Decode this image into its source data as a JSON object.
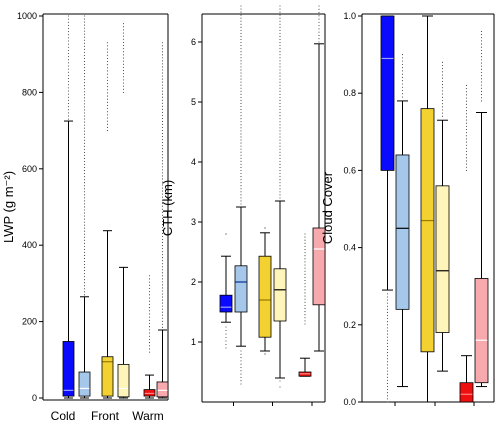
{
  "chart_data": [
    {
      "type": "box",
      "ylabel": "LWP (g m⁻²)",
      "ylim": [
        0,
        1000
      ],
      "yticks": [
        0,
        200,
        400,
        600,
        800,
        1000
      ],
      "group_labels": [
        "Cold",
        "Front",
        "Warm"
      ],
      "boxes": [
        {
          "group": "Cold",
          "color": "#0a0aff",
          "median_color": "#9aa0ff",
          "q1": 5,
          "median": 20,
          "q3": 148,
          "whisker_low": 0,
          "whisker_high": 725,
          "outliers_from": 730,
          "outliers_to": 1000
        },
        {
          "group": "Cold",
          "color": "#a5c8ea",
          "median_color": "#ffffff",
          "q1": 5,
          "median": 25,
          "q3": 68,
          "whisker_low": 0,
          "whisker_high": 265,
          "outliers_from": 270,
          "outliers_to": 1000
        },
        {
          "group": "Front",
          "color": "#f2d130",
          "median_color": "#9a7a00",
          "q1": 5,
          "median": 95,
          "q3": 108,
          "whisker_low": 0,
          "whisker_high": 438,
          "outliers_from": 700,
          "outliers_to": 930
        },
        {
          "group": "Front",
          "color": "#fff5bb",
          "median_color": "#ffffff",
          "q1": 3,
          "median": 25,
          "q3": 88,
          "whisker_low": 0,
          "whisker_high": 342,
          "outliers_from": 800,
          "outliers_to": 980
        },
        {
          "group": "Warm",
          "color": "#ee1010",
          "median_color": "#ff8080",
          "q1": 5,
          "median": 12,
          "q3": 22,
          "whisker_low": 0,
          "whisker_high": 60,
          "outliers_from": 120,
          "outliers_to": 320
        },
        {
          "group": "Warm",
          "color": "#f7a9ad",
          "median_color": "#ffffff",
          "q1": 3,
          "median": 20,
          "q3": 42,
          "whisker_low": 0,
          "whisker_high": 178,
          "outliers_from": 185,
          "outliers_to": 930
        }
      ]
    },
    {
      "type": "box",
      "ylabel": "CTH (km)",
      "ylim": [
        0,
        6.6
      ],
      "yticks": [
        1,
        2,
        3,
        4,
        5,
        6
      ],
      "boxes": [
        {
          "color": "#0a0aff",
          "median_color": "#9aa0ff",
          "q1": 1.5,
          "median": 1.58,
          "q3": 1.78,
          "whisker_low": 1.33,
          "whisker_high": 2.43,
          "outliers_from": 0.9,
          "outliers_to": 1.25,
          "outliers_high_from": 2.8,
          "outliers_high_to": 2.8
        },
        {
          "color": "#a5c8ea",
          "median_color": "#003399",
          "q1": 1.5,
          "median": 2.0,
          "q3": 2.27,
          "whisker_low": 0.93,
          "whisker_high": 3.25,
          "outliers_from": 3.3,
          "outliers_to": 6.6,
          "outliers_low_from": 0.3,
          "outliers_low_to": 0.85
        },
        {
          "color": "#f2d130",
          "median_color": "#9a7a00",
          "q1": 1.08,
          "median": 1.7,
          "q3": 2.43,
          "whisker_low": 0.85,
          "whisker_high": 2.82,
          "outliers_from": 2.9,
          "outliers_to": 2.9,
          "outliers_low_from": 0.8,
          "outliers_low_to": 0.8
        },
        {
          "color": "#fff5bb",
          "median_color": "#000000",
          "q1": 1.35,
          "median": 1.87,
          "q3": 2.22,
          "whisker_low": 0.4,
          "whisker_high": 3.35,
          "outliers_from": 3.4,
          "outliers_to": 6.6,
          "outliers_low_from": 0.25,
          "outliers_low_to": 0.35
        },
        {
          "color": "#ee1010",
          "median_color": "#ff8080",
          "q1": 0.43,
          "median": 0.47,
          "q3": 0.5,
          "whisker_low": 0.43,
          "whisker_high": 0.73,
          "outliers_from": 1.3,
          "outliers_to": 2.8
        },
        {
          "color": "#f7a9ad",
          "median_color": "#ffffff",
          "q1": 1.62,
          "median": 2.55,
          "q3": 2.9,
          "whisker_low": 0.85,
          "whisker_high": 5.97,
          "outliers_from": 6.0,
          "outliers_to": 6.6
        }
      ]
    },
    {
      "type": "box",
      "ylabel": "Cloud Cover",
      "ylim": [
        0,
        1.0
      ],
      "yticks": [
        0.0,
        0.2,
        0.4,
        0.6,
        0.8,
        1.0
      ],
      "boxes": [
        {
          "color": "#0a0aff",
          "median_color": "#9aa0ff",
          "q1": 0.6,
          "median": 0.89,
          "q3": 1.0,
          "whisker_low": 0.29,
          "whisker_high": 1.0,
          "outliers_from": 0.0,
          "outliers_to": 0.28
        },
        {
          "color": "#a5c8ea",
          "median_color": "#000000",
          "q1": 0.24,
          "median": 0.45,
          "q3": 0.64,
          "whisker_low": 0.04,
          "whisker_high": 0.78,
          "outliers_from": 0.79,
          "outliers_to": 0.9
        },
        {
          "color": "#f2d130",
          "median_color": "#9a7a00",
          "q1": 0.13,
          "median": 0.47,
          "q3": 0.76,
          "whisker_low": 0.0,
          "whisker_high": 1.0,
          "outliers_from": 0,
          "outliers_to": 0
        },
        {
          "color": "#fff5bb",
          "median_color": "#000000",
          "q1": 0.18,
          "median": 0.34,
          "q3": 0.56,
          "whisker_low": 0.08,
          "whisker_high": 0.73,
          "outliers_from": 0.74,
          "outliers_to": 0.88
        },
        {
          "color": "#ee1010",
          "median_color": "#ff8080",
          "q1": 0.0,
          "median": 0.02,
          "q3": 0.05,
          "whisker_low": 0.0,
          "whisker_high": 0.12,
          "outliers_from": 0.6,
          "outliers_to": 0.82
        },
        {
          "color": "#f7a9ad",
          "median_color": "#ffffff",
          "q1": 0.05,
          "median": 0.16,
          "q3": 0.32,
          "whisker_low": 0.04,
          "whisker_high": 0.75,
          "outliers_from": 0.78,
          "outliers_to": 0.96
        }
      ]
    }
  ]
}
